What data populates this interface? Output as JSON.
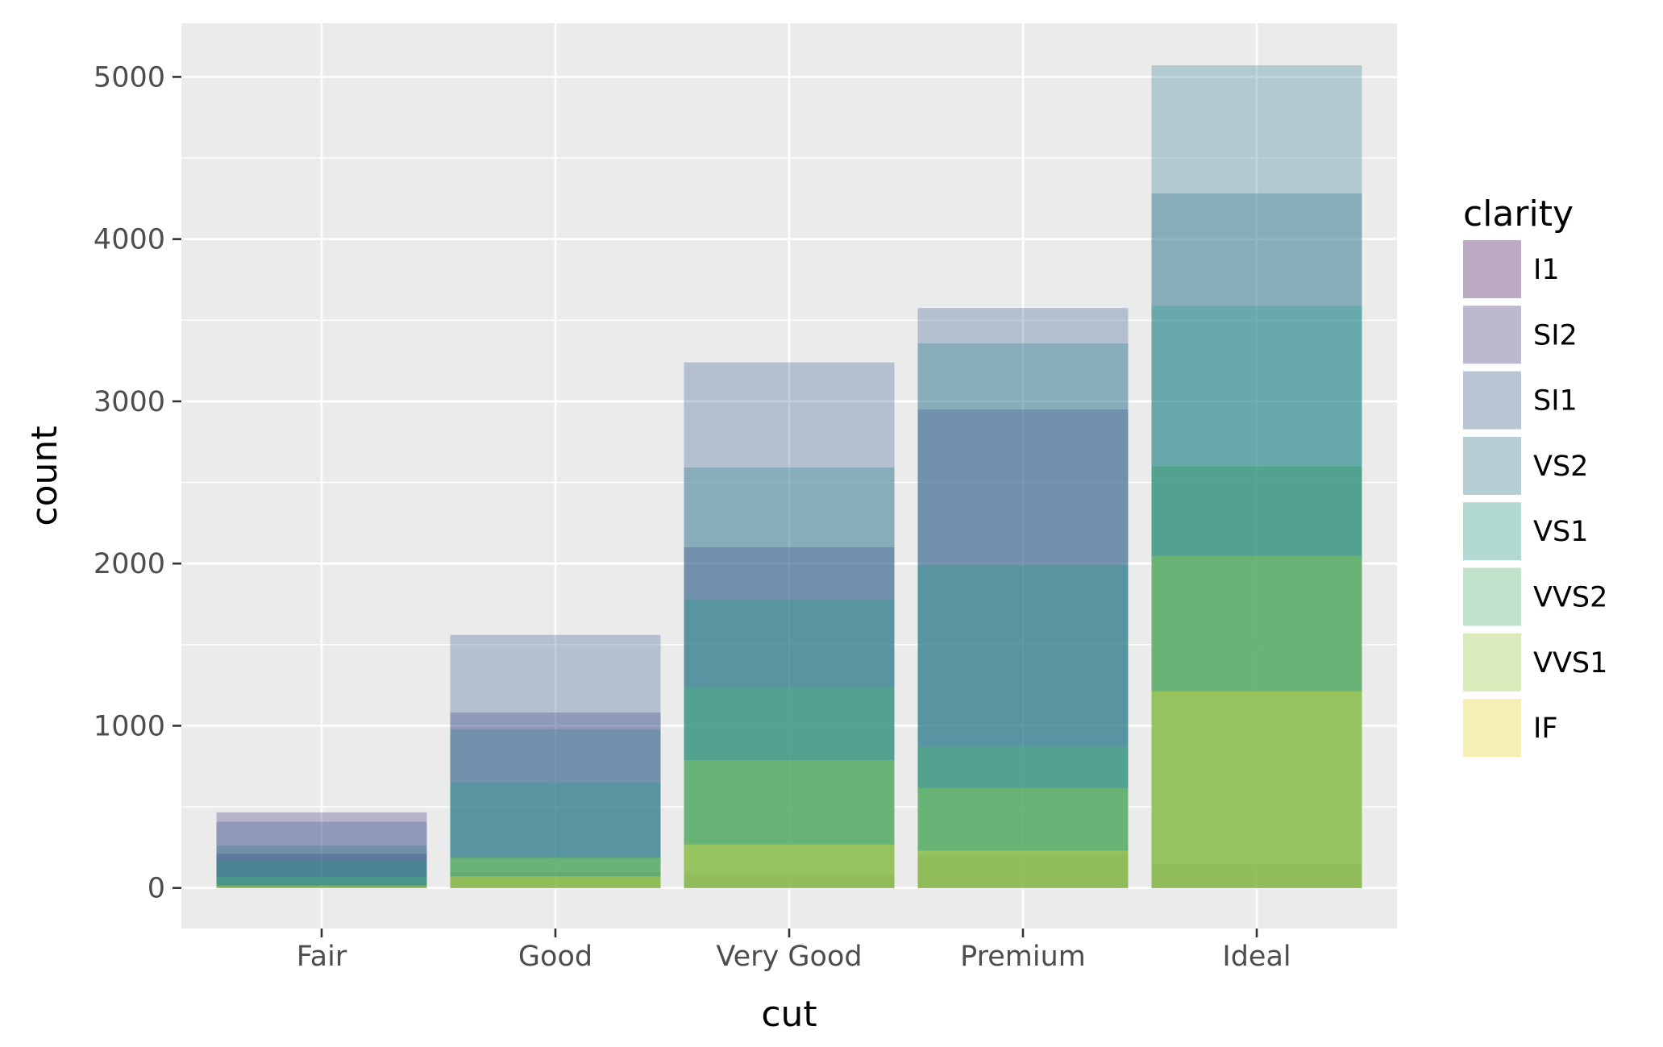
{
  "chart_data": {
    "type": "bar",
    "position": "identity",
    "bar_alpha": 0.3,
    "xlabel": "cut",
    "ylabel": "count",
    "categories": [
      "Fair",
      "Good",
      "Very Good",
      "Premium",
      "Ideal"
    ],
    "ylim": [
      -250,
      5330
    ],
    "y_ticks": [
      0,
      1000,
      2000,
      3000,
      4000,
      5000
    ],
    "y_tick_labels": [
      "0",
      "1000",
      "2000",
      "3000",
      "4000",
      "5000"
    ],
    "grid": true,
    "legend": {
      "title": "clarity",
      "position": "right"
    },
    "series": [
      {
        "name": "I1",
        "color": "#440154",
        "values": [
          210,
          96,
          84,
          205,
          146
        ]
      },
      {
        "name": "SI2",
        "color": "#46337E",
        "values": [
          466,
          1081,
          2100,
          2949,
          2598
        ]
      },
      {
        "name": "SI1",
        "color": "#365C8D",
        "values": [
          408,
          1560,
          3240,
          3575,
          4282
        ]
      },
      {
        "name": "VS2",
        "color": "#277F8E",
        "values": [
          261,
          978,
          2591,
          3357,
          5071
        ]
      },
      {
        "name": "VS1",
        "color": "#1FA187",
        "values": [
          170,
          648,
          1775,
          1989,
          3589
        ]
      },
      {
        "name": "VVS2",
        "color": "#4AC16D",
        "values": [
          69,
          186,
          1235,
          870,
          2606
        ]
      },
      {
        "name": "VVS1",
        "color": "#9FDA3A",
        "values": [
          17,
          186,
          789,
          616,
          2047
        ]
      },
      {
        "name": "IF",
        "color": "#FDE725",
        "values": [
          9,
          71,
          268,
          230,
          1212
        ]
      }
    ]
  }
}
